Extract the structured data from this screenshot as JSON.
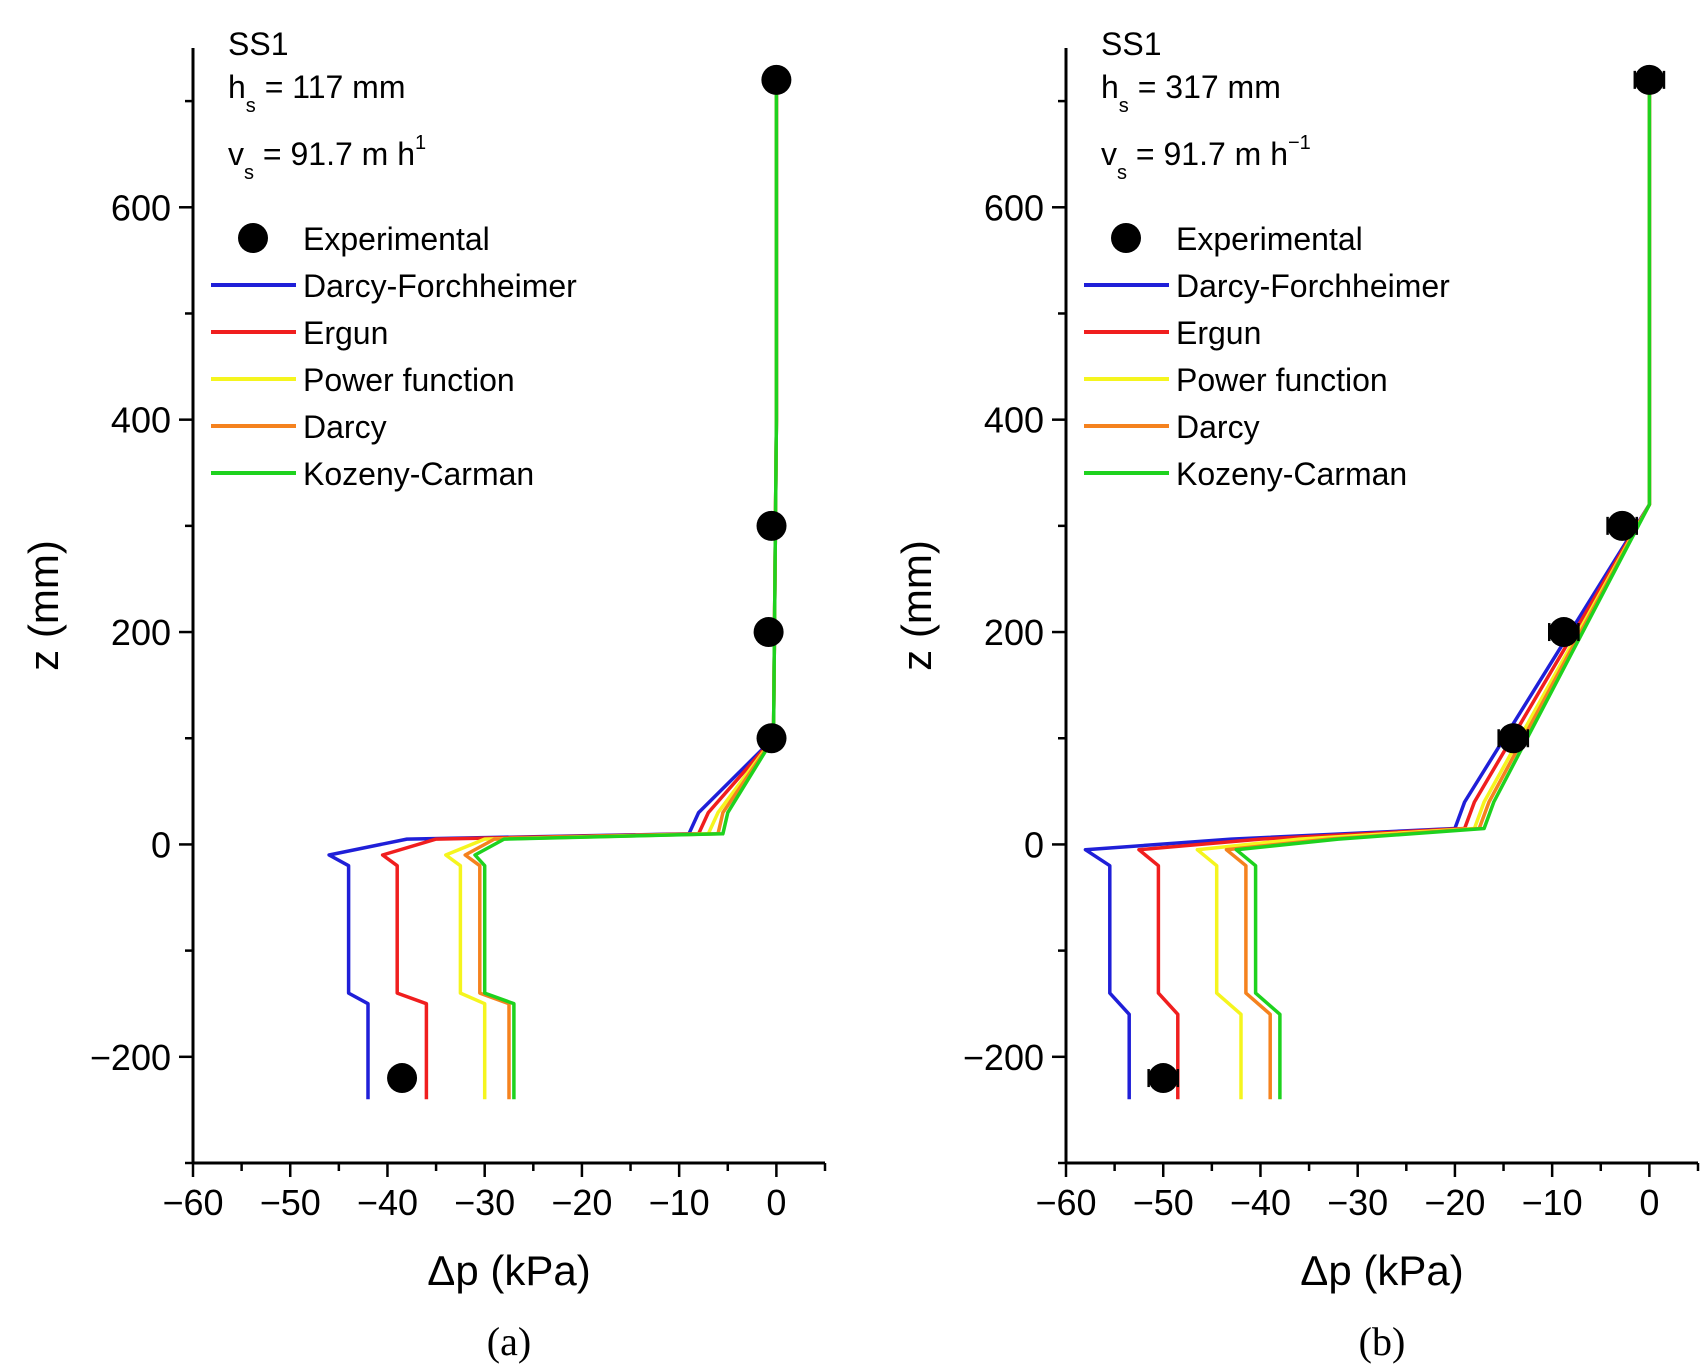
{
  "colors": {
    "experimental": "#000000",
    "Darcy-Forchheimer": "#1f1fd8",
    "Ergun": "#f01e1e",
    "Power function": "#f5f51e",
    "Darcy": "#f5821e",
    "Kozeny-Carman": "#1ed21e"
  },
  "legend_placement": "top-left",
  "chart_data": [
    {
      "type": "line",
      "panel_label": "(a)",
      "annotation": {
        "line1": "SS1",
        "hs_main": "h",
        "hs_sub": "s",
        "hs_value": " = 117 mm",
        "vs_main": "v",
        "vs_sub": "s",
        "vs_value": " = 91.7 m h",
        "vs_exp": "1"
      },
      "xlabel": "Δp (kPa)",
      "ylabel": "z (mm)",
      "xlim": [
        -60,
        5
      ],
      "ylim": [
        -300,
        750
      ],
      "xticks": [
        -60,
        -50,
        -40,
        -30,
        -20,
        -10,
        0
      ],
      "xtick_labels": [
        "−60",
        "−50",
        "−40",
        "−30",
        "−20",
        "−10",
        "0"
      ],
      "yticks": [
        -200,
        0,
        200,
        400,
        600
      ],
      "ytick_labels": [
        "−200",
        "0",
        "200",
        "400",
        "600"
      ],
      "grid": false,
      "legend": [
        "Experimental",
        "Darcy-Forchheimer",
        "Ergun",
        "Power function",
        "Darcy",
        "Kozeny-Carman"
      ],
      "experimental": {
        "name": "Experimental",
        "x": [
          0,
          -0.5,
          -0.8,
          -0.5,
          -38.5
        ],
        "y": [
          720,
          300,
          200,
          100,
          -220
        ],
        "xerr": [
          1,
          1,
          1,
          1,
          1
        ]
      },
      "series": [
        {
          "name": "Darcy-Forchheimer",
          "x": [
            0,
            0,
            -0.3,
            -8,
            -9,
            -38,
            -46,
            -44,
            -44,
            -42,
            -42
          ],
          "y": [
            720,
            400,
            100,
            30,
            10,
            5,
            -10,
            -20,
            -140,
            -150,
            -240
          ]
        },
        {
          "name": "Ergun",
          "x": [
            0,
            0,
            -0.3,
            -7,
            -8,
            -35,
            -40.5,
            -39,
            -39,
            -36,
            -36
          ],
          "y": [
            720,
            400,
            100,
            30,
            10,
            5,
            -10,
            -20,
            -140,
            -150,
            -240
          ]
        },
        {
          "name": "Power function",
          "x": [
            0,
            0,
            -0.3,
            -6,
            -7,
            -30,
            -34,
            -32.5,
            -32.5,
            -30,
            -30
          ],
          "y": [
            720,
            400,
            100,
            30,
            10,
            5,
            -10,
            -20,
            -140,
            -150,
            -240
          ]
        },
        {
          "name": "Darcy",
          "x": [
            0,
            0,
            -0.3,
            -5.5,
            -6,
            -29,
            -32,
            -30.5,
            -30.5,
            -27.5,
            -27.5
          ],
          "y": [
            720,
            400,
            100,
            30,
            10,
            5,
            -10,
            -20,
            -140,
            -150,
            -240
          ]
        },
        {
          "name": "Kozeny-Carman",
          "x": [
            0,
            0,
            -0.3,
            -5,
            -5.5,
            -28,
            -31,
            -30,
            -30,
            -27,
            -27
          ],
          "y": [
            720,
            400,
            100,
            30,
            10,
            5,
            -10,
            -20,
            -140,
            -150,
            -240
          ]
        }
      ]
    },
    {
      "type": "line",
      "panel_label": "(b)",
      "annotation": {
        "line1": "SS1",
        "hs_main": "h",
        "hs_sub": "s",
        "hs_value": " = 317 mm",
        "vs_main": "v",
        "vs_sub": "s",
        "vs_value": " = 91.7 m h",
        "vs_exp": "−1"
      },
      "xlabel": "Δp (kPa)",
      "ylabel": "z (mm)",
      "xlim": [
        -60,
        5
      ],
      "ylim": [
        -300,
        750
      ],
      "xticks": [
        -60,
        -50,
        -40,
        -30,
        -20,
        -10,
        0
      ],
      "xtick_labels": [
        "−60",
        "−50",
        "−40",
        "−30",
        "−20",
        "−10",
        "0"
      ],
      "yticks": [
        -200,
        0,
        200,
        400,
        600
      ],
      "ytick_labels": [
        "−200",
        "0",
        "200",
        "400",
        "600"
      ],
      "grid": false,
      "legend": [
        "Experimental",
        "Darcy-Forchheimer",
        "Ergun",
        "Power function",
        "Darcy",
        "Kozeny-Carman"
      ],
      "experimental": {
        "name": "Experimental",
        "x": [
          0,
          -2.8,
          -8.8,
          -14,
          -50
        ],
        "y": [
          720,
          300,
          200,
          100,
          -220
        ],
        "xerr": [
          1.5,
          1.5,
          1.5,
          1.5,
          1.5
        ]
      },
      "series": [
        {
          "name": "Darcy-Forchheimer",
          "x": [
            0,
            0,
            -19,
            -20,
            -43,
            -58,
            -55.5,
            -55.5,
            -53.5,
            -53.5
          ],
          "y": [
            720,
            320,
            40,
            15,
            5,
            -5,
            -20,
            -140,
            -160,
            -240
          ]
        },
        {
          "name": "Ergun",
          "x": [
            0,
            0,
            -18,
            -19,
            -40,
            -52.5,
            -50.5,
            -50.5,
            -48.5,
            -48.5
          ],
          "y": [
            720,
            320,
            40,
            15,
            5,
            -5,
            -20,
            -140,
            -160,
            -240
          ]
        },
        {
          "name": "Power function",
          "x": [
            0,
            0,
            -17,
            -18,
            -36,
            -46.5,
            -44.5,
            -44.5,
            -42,
            -42
          ],
          "y": [
            720,
            320,
            40,
            15,
            5,
            -5,
            -20,
            -140,
            -160,
            -240
          ]
        },
        {
          "name": "Darcy",
          "x": [
            0,
            0,
            -16.5,
            -17.5,
            -33,
            -43.5,
            -41.5,
            -41.5,
            -39,
            -39
          ],
          "y": [
            720,
            320,
            40,
            15,
            5,
            -5,
            -20,
            -140,
            -160,
            -240
          ]
        },
        {
          "name": "Kozeny-Carman",
          "x": [
            0,
            0,
            -16,
            -17,
            -32,
            -42.5,
            -40.5,
            -40.5,
            -38,
            -38
          ],
          "y": [
            720,
            320,
            40,
            15,
            5,
            -5,
            -20,
            -140,
            -160,
            -240
          ]
        }
      ]
    }
  ]
}
